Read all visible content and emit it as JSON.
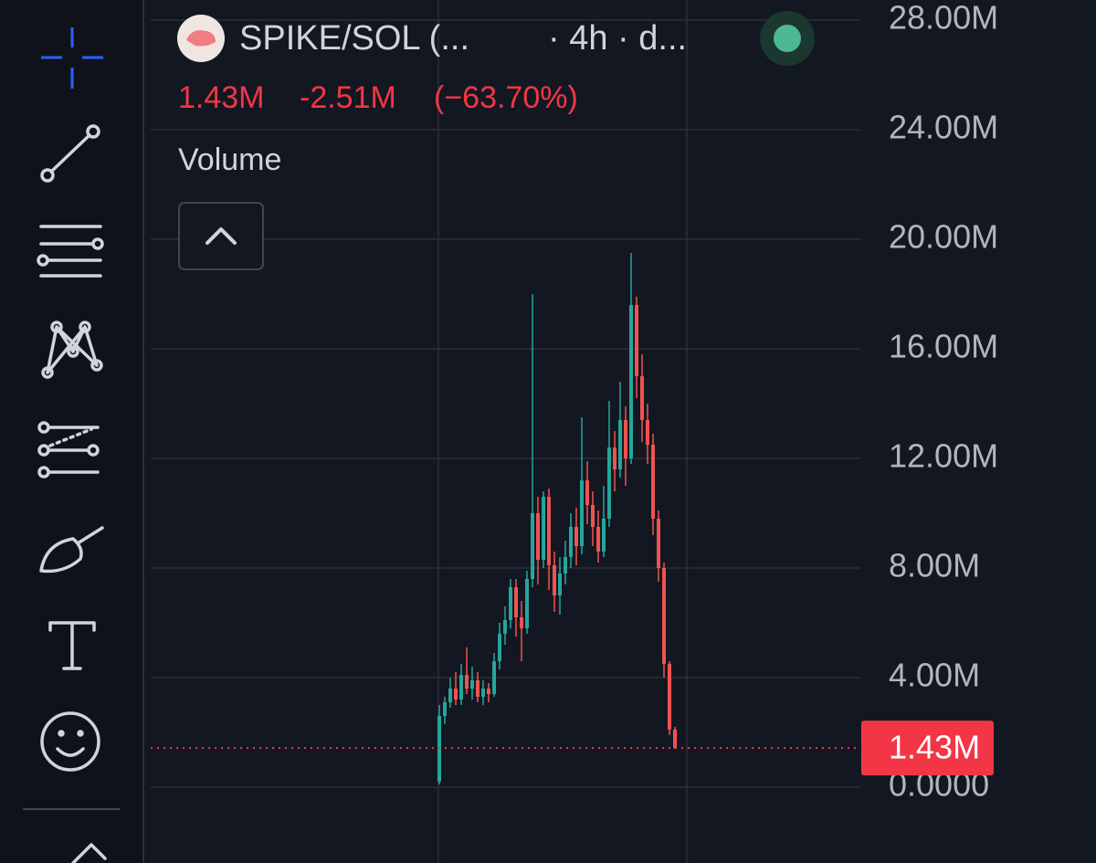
{
  "header": {
    "symbol": "SPIKE/SOL (...",
    "interval": "· 4h · d...",
    "change": "-2.51M",
    "change_percent": "(−63.70%)",
    "indicator": "Volume"
  },
  "chart_data": {
    "type": "candlestick",
    "up_color": "#26a69a",
    "down_color": "#ef5350",
    "grid": true,
    "open": [
      0.2,
      2.6,
      3.1,
      3.6,
      3.2,
      4.1,
      3.6,
      3.9,
      3.3,
      3.6,
      3.4,
      4.6,
      5.6,
      6.1,
      7.3,
      6.2,
      5.8,
      7.6,
      10.0,
      8.3,
      10.6,
      8.1,
      7.0,
      7.8,
      8.4,
      9.5,
      8.8,
      11.2,
      10.3,
      9.5,
      8.6,
      9.8,
      12.4,
      11.6,
      13.4,
      12.0,
      17.6,
      15.0,
      13.4,
      12.5,
      9.8,
      8.0,
      4.5,
      2.1
    ],
    "high": [
      3.0,
      3.3,
      4.0,
      4.2,
      4.5,
      5.1,
      4.4,
      4.2,
      3.9,
      3.8,
      4.9,
      6.0,
      6.6,
      7.6,
      7.6,
      6.8,
      7.9,
      18.0,
      10.6,
      10.8,
      10.9,
      8.6,
      8.4,
      9.0,
      10.0,
      10.2,
      13.5,
      11.9,
      10.8,
      10.1,
      11.0,
      14.1,
      13.0,
      14.8,
      13.9,
      19.5,
      17.9,
      15.8,
      14.0,
      12.9,
      10.1,
      8.2,
      4.6,
      2.2
    ],
    "low": [
      0.1,
      2.3,
      2.9,
      3.0,
      3.0,
      3.4,
      3.2,
      3.1,
      3.0,
      3.1,
      3.3,
      4.3,
      5.2,
      5.8,
      5.5,
      4.6,
      5.6,
      7.3,
      7.4,
      8.0,
      7.2,
      6.4,
      6.3,
      7.4,
      8.0,
      8.1,
      8.5,
      9.6,
      8.8,
      8.2,
      8.4,
      9.5,
      10.8,
      11.3,
      11.0,
      11.8,
      14.2,
      12.6,
      11.8,
      9.2,
      7.5,
      4.0,
      1.9,
      1.4
    ],
    "close": [
      2.6,
      3.1,
      3.6,
      3.2,
      4.1,
      3.6,
      3.9,
      3.3,
      3.6,
      3.4,
      4.6,
      5.6,
      6.1,
      7.3,
      6.2,
      5.8,
      7.6,
      10.0,
      8.3,
      10.6,
      8.1,
      7.0,
      7.8,
      8.4,
      9.5,
      8.8,
      11.2,
      10.3,
      9.5,
      8.6,
      9.8,
      12.4,
      11.6,
      13.4,
      12.0,
      17.6,
      15.0,
      13.4,
      12.5,
      9.8,
      8.0,
      4.5,
      2.1,
      1.43
    ],
    "ylim": [
      -2.767,
      28.733
    ],
    "yticks": [
      {
        "value": 0,
        "label": "0.0000"
      },
      {
        "value": 4,
        "label": "4.00M"
      },
      {
        "value": 8,
        "label": "8.00M"
      },
      {
        "value": 12,
        "label": "12.00M"
      },
      {
        "value": 16,
        "label": "16.00M"
      },
      {
        "value": 20,
        "label": "20.00M"
      },
      {
        "value": 24,
        "label": "24.00M"
      },
      {
        "value": 28,
        "label": "28.00M"
      }
    ],
    "last_price": {
      "value": 1.43,
      "label": "1.43M"
    }
  }
}
